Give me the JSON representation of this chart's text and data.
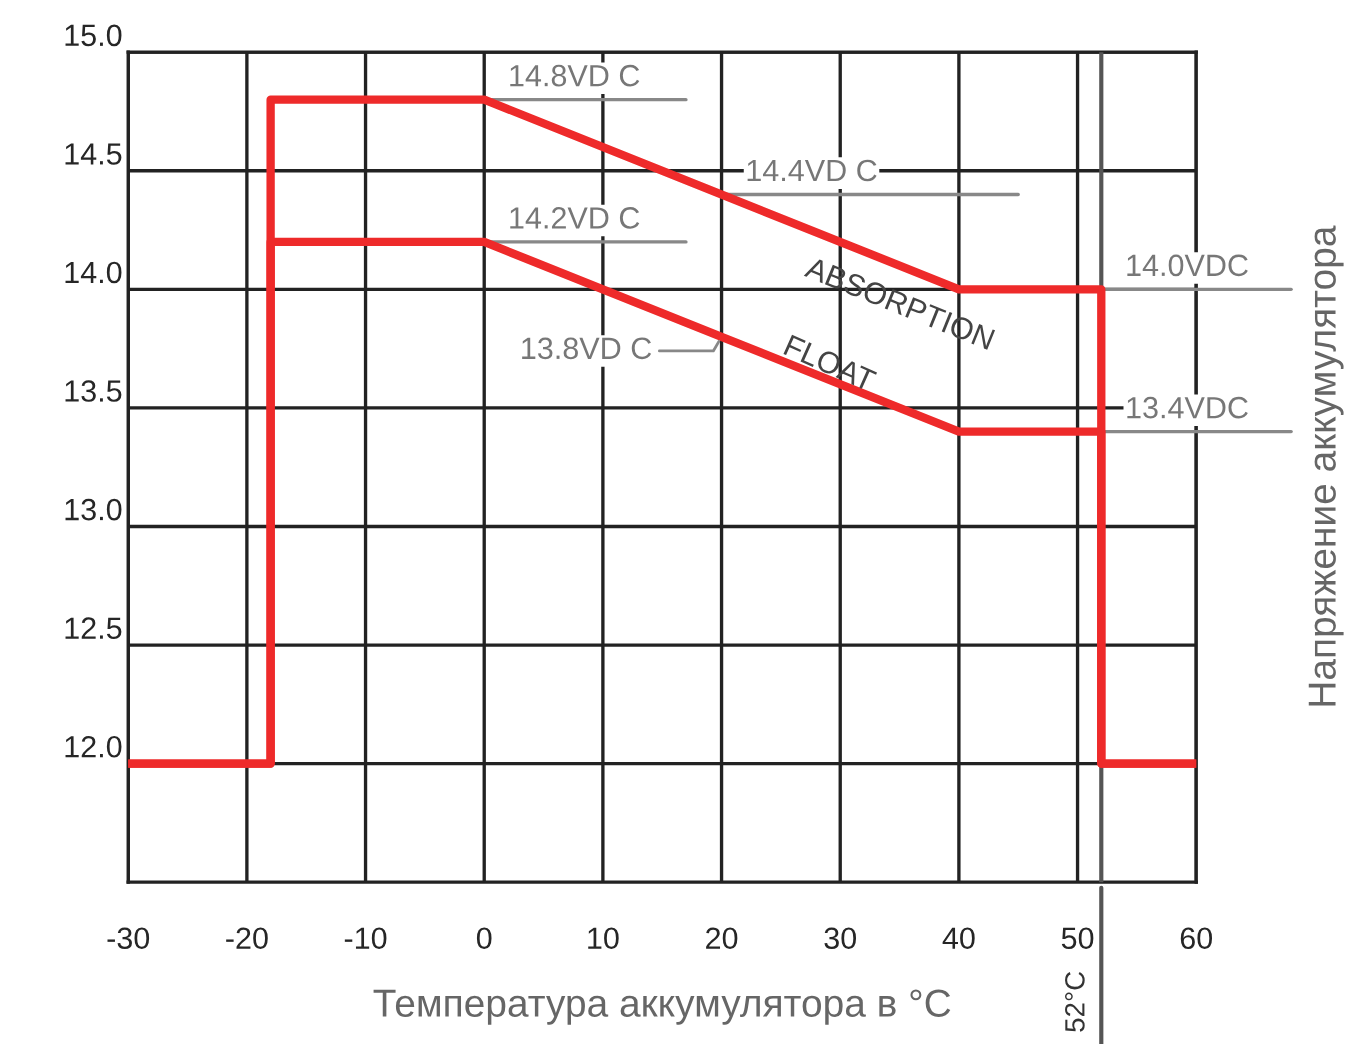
{
  "chart_data": {
    "type": "line",
    "xlabel": "Температура аккумулятора в °C",
    "ylabel": "Напряжение аккумулятора",
    "xlim": [
      -30,
      60
    ],
    "xticks": [
      -30,
      -20,
      -10,
      0,
      10,
      20,
      30,
      40,
      50,
      60
    ],
    "ylim": [
      11.5,
      15.0
    ],
    "yticks": [
      {
        "value": 12.0,
        "label": "12.0"
      },
      {
        "value": 12.5,
        "label": "12.5"
      },
      {
        "value": 13.0,
        "label": "13.0"
      },
      {
        "value": 13.5,
        "label": "13.5"
      },
      {
        "value": 14.0,
        "label": "14.0"
      },
      {
        "value": 14.5,
        "label": "14.5"
      },
      {
        "value": 15.0,
        "label": "15.0"
      }
    ],
    "grid": true,
    "legend": false,
    "line_style": "solid",
    "marker": "none",
    "series": [
      {
        "color": "#ee2a2a",
        "x": [
          -30,
          -18,
          -18,
          0,
          40,
          52,
          52,
          60
        ],
        "values": [
          12.0,
          12.0,
          14.8,
          14.8,
          14.0,
          14.0,
          12.0,
          12.0
        ]
      },
      {
        "color": "#ee2a2a",
        "x": [
          -30,
          -18,
          -18,
          0,
          20,
          40,
          52,
          52,
          60
        ],
        "values": [
          12.0,
          12.0,
          14.2,
          14.2,
          13.8,
          13.4,
          13.4,
          12.0,
          12.0
        ]
      }
    ],
    "ref_lines": [
      {
        "axis": "x",
        "value": 52,
        "label": "52°C",
        "color": "#555555"
      }
    ],
    "annotations": [
      {
        "text": "14.8VD C",
        "x": 0,
        "y": 14.8
      },
      {
        "text": "14.4VD C",
        "x": 20,
        "y": 14.4
      },
      {
        "text": "14.2VD C",
        "x": 0,
        "y": 14.2
      },
      {
        "text": "13.8VD C",
        "x": 20,
        "y": 13.8
      },
      {
        "text": "14.0VDC",
        "x": 52,
        "y": 14.0
      },
      {
        "text": "13.4VDC",
        "x": 52,
        "y": 13.4
      },
      "ABSORPTION",
      "FLOAT"
    ]
  }
}
